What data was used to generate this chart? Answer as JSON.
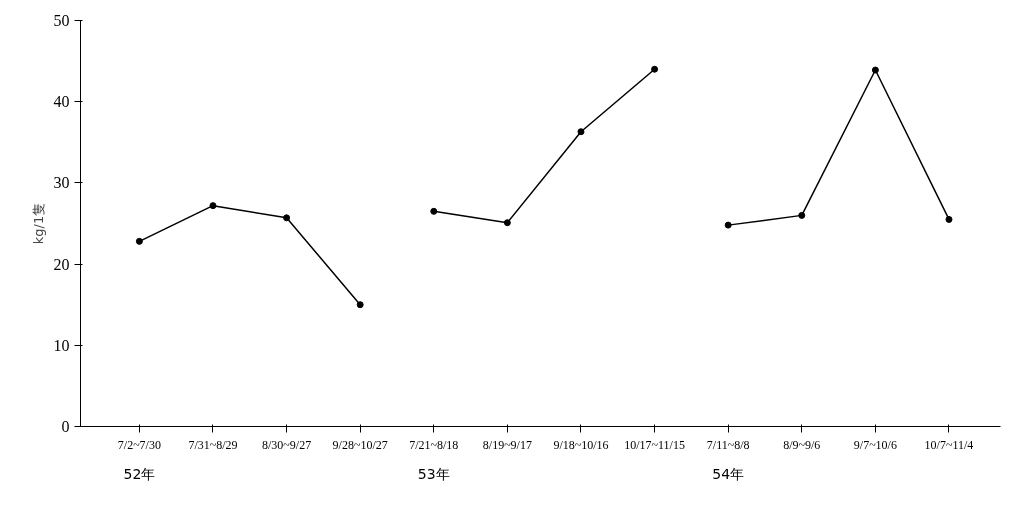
{
  "chart_data": {
    "type": "line",
    "ylabel": "kg/1隻",
    "categories": [
      "7/2~7/30",
      "7/31~8/29",
      "8/30~9/27",
      "9/28~10/27",
      "7/21~8/18",
      "8/19~9/17",
      "9/18~10/16",
      "10/17~11/15",
      "7/11~8/8",
      "8/9~9/6",
      "9/7~10/6",
      "10/7~11/4"
    ],
    "series": [
      {
        "color": "#000000",
        "values": [
          22.8,
          27.2,
          25.7,
          15.0,
          null,
          null,
          null,
          null,
          null,
          null,
          null,
          null
        ]
      },
      {
        "color": "#000000",
        "values": [
          null,
          null,
          null,
          null,
          26.5,
          25.1,
          36.3,
          44.0,
          null,
          null,
          null,
          null
        ]
      },
      {
        "color": "#000000",
        "values": [
          null,
          null,
          null,
          null,
          null,
          null,
          null,
          null,
          24.8,
          26.0,
          43.9,
          25.5
        ]
      }
    ],
    "annotations": [
      "52年",
      "53年",
      "54年"
    ],
    "ylim": [
      0,
      50
    ],
    "yticks": [
      0,
      10,
      20,
      30,
      40,
      50
    ],
    "grid": false,
    "marker": "circle",
    "line_style": "solid"
  }
}
